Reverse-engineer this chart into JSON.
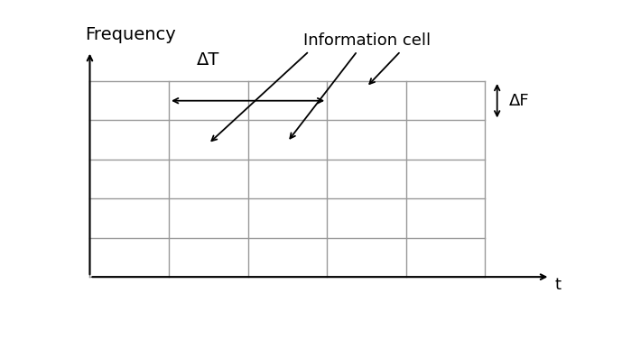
{
  "grid_cols": 5,
  "grid_rows": 5,
  "grid_color": "#999999",
  "background_color": "#ffffff",
  "freq_label": "Frequency",
  "t_label": "t",
  "delta_t_label": "ΔT",
  "delta_f_label": "ΔF",
  "info_cell_label": "Information cell",
  "freq_label_fontsize": 14,
  "annotation_fontsize": 13,
  "gl": 0.025,
  "gr": 0.845,
  "gb": 0.095,
  "gt": 0.845,
  "arrow_color": "#000000",
  "lw_grid": 1.0,
  "lw_axis": 1.5,
  "lw_annotation": 1.3
}
